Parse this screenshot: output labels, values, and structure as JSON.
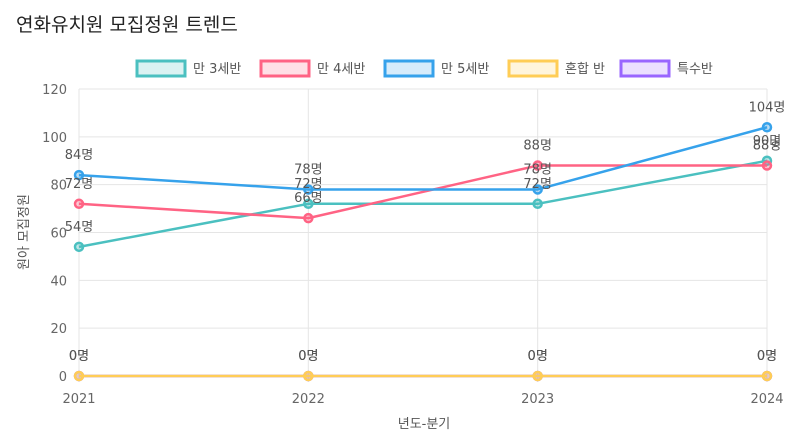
{
  "chart_data": {
    "type": "line",
    "title": "연화유치원 모집정원 트렌드",
    "xlabel": "년도-분기",
    "ylabel": "원아 모집정원",
    "categories": [
      "2021",
      "2022",
      "2023",
      "2024"
    ],
    "ylim": [
      0,
      120
    ],
    "yticks": [
      "0",
      "20",
      "40",
      "60",
      "80",
      "100",
      "120"
    ],
    "value_suffix": "명",
    "grid": true,
    "legend_position": "top",
    "series": [
      {
        "name": "만 3세반",
        "values": [
          54,
          72,
          72,
          90
        ],
        "labels": [
          "54명",
          "72명",
          "72명",
          "90명"
        ],
        "color": "#4bc0c0"
      },
      {
        "name": "만 4세반",
        "values": [
          72,
          66,
          88,
          88
        ],
        "labels": [
          "72명",
          "66명",
          "88명",
          "88명"
        ],
        "color": "#ff6384"
      },
      {
        "name": "만 5세반",
        "values": [
          84,
          78,
          78,
          104
        ],
        "labels": [
          "84명",
          "78명",
          "78명",
          "104명"
        ],
        "color": "#36a2eb"
      },
      {
        "name": "혼합 반",
        "values": [
          0,
          0,
          0,
          0
        ],
        "labels": [
          "0명",
          "0명",
          "0명",
          "0명"
        ],
        "color": "#ffcd56"
      },
      {
        "name": "특수반",
        "values": [
          0,
          0,
          0,
          0
        ],
        "labels": [
          "0명",
          "0명",
          "0명",
          "0명"
        ],
        "color": "#9966ff"
      }
    ]
  }
}
